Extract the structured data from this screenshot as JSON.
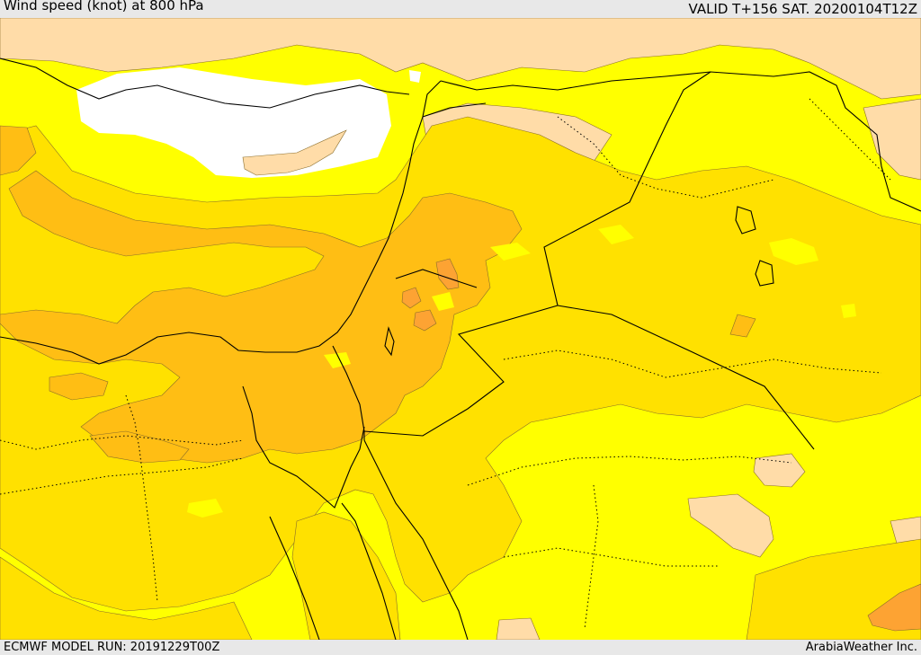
{
  "header": {
    "title": "Wind speed (knot) at 800 hPa",
    "valid_time": "VALID T+156 SAT. 20200104T12Z"
  },
  "footer": {
    "model_run": "ECMWF MODEL RUN: 20191229T00Z",
    "credit": "ArabiaWeather Inc."
  },
  "colors": {
    "sea_calm": "#ffffff",
    "level_1": "#ffdca8",
    "level_2": "#ffff00",
    "level_3": "#ffe100",
    "level_4": "#ffbe14",
    "level_5": "#fda333",
    "border": "#000000"
  }
}
